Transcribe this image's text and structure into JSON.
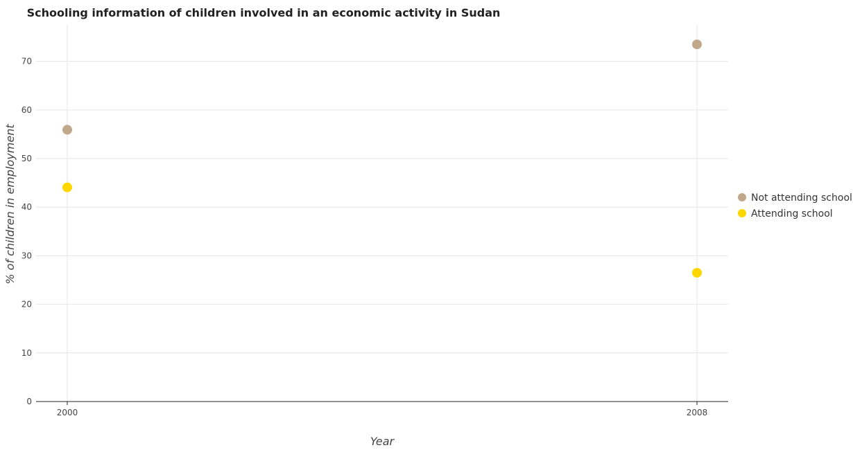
{
  "chart_data": {
    "type": "scatter",
    "title": "Schooling information of children involved in an economic activity in Sudan",
    "xlabel": "Year",
    "ylabel": "% of children in employment",
    "categories": [
      "2000",
      "2008"
    ],
    "ylim": [
      0,
      77.5
    ],
    "yticks": [
      "0",
      "10",
      "20",
      "30",
      "40",
      "50",
      "60",
      "70"
    ],
    "grid": true,
    "legend_position": "right",
    "series": [
      {
        "name": "Not attending school",
        "color": "#c0a98a",
        "values": [
          55.93,
          73.5
        ]
      },
      {
        "name": "Attending school",
        "color": "#ffd700",
        "values": [
          44.07,
          26.5
        ]
      }
    ]
  }
}
